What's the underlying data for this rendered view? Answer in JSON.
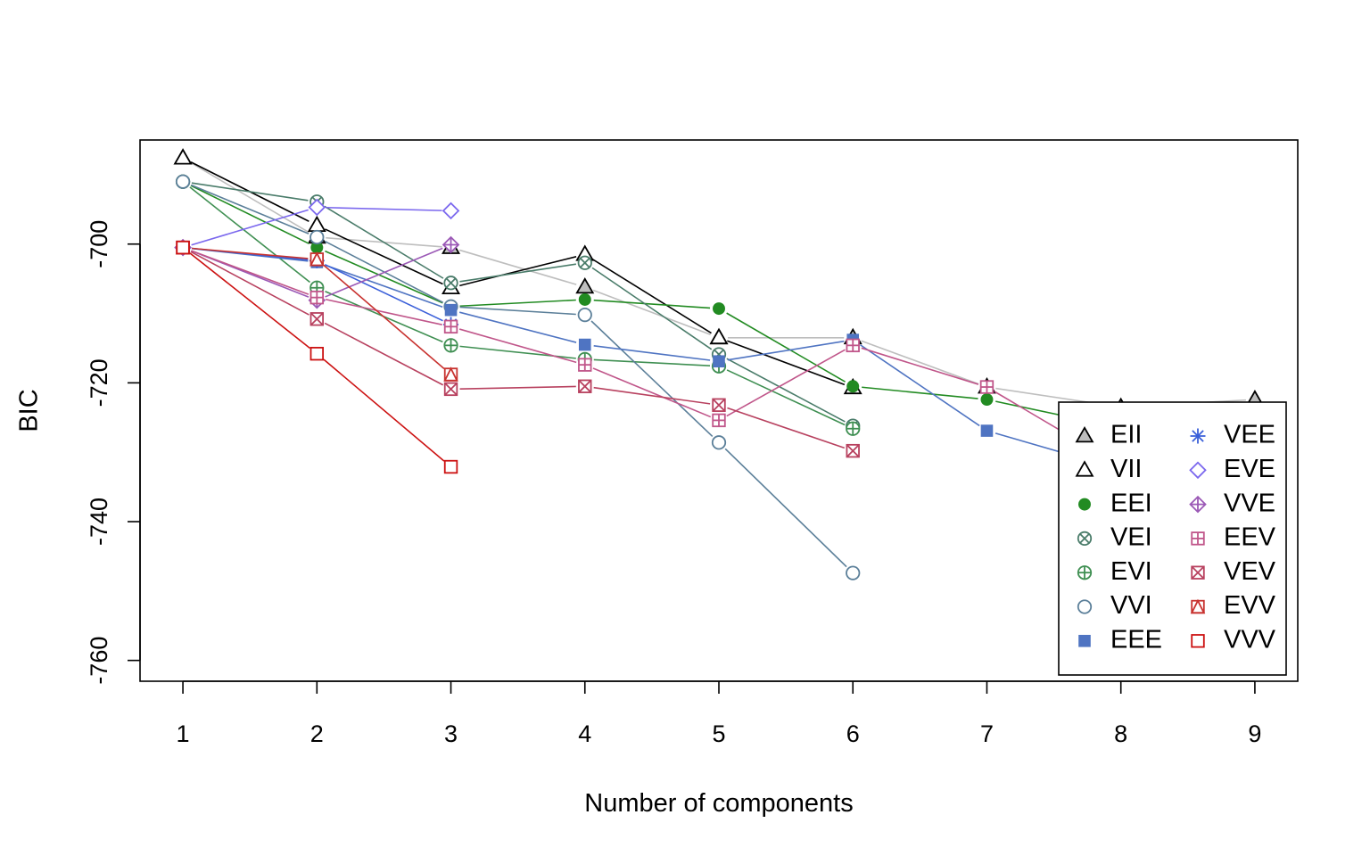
{
  "chart_data": {
    "type": "line",
    "title": "",
    "xlabel": "Number of components",
    "ylabel": "BIC",
    "x": [
      1,
      2,
      3,
      4,
      5,
      6,
      7,
      8,
      9
    ],
    "xlim": [
      0.68,
      9.32
    ],
    "ylim": [
      -763,
      -685
    ],
    "xticks": [
      "1",
      "2",
      "3",
      "4",
      "5",
      "6",
      "7",
      "8",
      "9"
    ],
    "yticks": [
      -760,
      -740,
      -720,
      -700
    ],
    "ytick_labels": [
      "-760",
      "-740",
      "-720",
      "-700"
    ],
    "grid": false,
    "legend_position": "bottom-right",
    "legend_columns": 2,
    "series": [
      {
        "name": "EII",
        "color": "#bebebe",
        "marker": "triangle-filled",
        "values": [
          -687.6,
          -699.0,
          -700.5,
          -706.2,
          -713.5,
          -713.5,
          -720.6,
          -723.5,
          -722.4
        ]
      },
      {
        "name": "VII",
        "color": "#000000",
        "marker": "triangle-open",
        "values": [
          -687.6,
          -697.3,
          -706.3,
          -701.5,
          -713.5,
          -720.7,
          null,
          null,
          null
        ]
      },
      {
        "name": "EEI",
        "color": "#228b22",
        "marker": "circle-filled",
        "values": [
          -691.0,
          -700.5,
          -709.0,
          -708.0,
          -709.3,
          -720.5,
          -722.4,
          -726.5,
          null
        ]
      },
      {
        "name": "VEI",
        "color": "#4a7c6a",
        "marker": "circle-x",
        "values": [
          -691.0,
          -693.9,
          -705.6,
          -702.7,
          -715.9,
          -726.2,
          null,
          null,
          null
        ]
      },
      {
        "name": "EVI",
        "color": "#3f8f52",
        "marker": "circle-plus",
        "values": [
          -691.0,
          -706.3,
          -714.6,
          -716.6,
          -717.6,
          -726.6,
          null,
          null,
          null
        ]
      },
      {
        "name": "VVI",
        "color": "#5b7f99",
        "marker": "circle-open",
        "values": [
          -691.0,
          -699.0,
          -709.0,
          -710.2,
          -728.6,
          -747.4,
          null,
          null,
          null
        ]
      },
      {
        "name": "EEE",
        "color": "#4f74c2",
        "marker": "square-filled",
        "values": [
          -700.5,
          -702.6,
          -709.5,
          -714.5,
          -716.9,
          -713.8,
          -726.9,
          -732.5,
          null
        ]
      },
      {
        "name": "VEE",
        "color": "#3a5fd9",
        "marker": "asterisk",
        "values": [
          -700.5,
          -702.4,
          -711.6,
          null,
          null,
          null,
          null,
          null,
          null
        ]
      },
      {
        "name": "EVE",
        "color": "#7b68ee",
        "marker": "diamond-open",
        "values": [
          -700.5,
          -694.7,
          -695.2,
          null,
          null,
          null,
          null,
          null,
          null
        ]
      },
      {
        "name": "VVE",
        "color": "#9b59b6",
        "marker": "diamond-plus",
        "values": [
          -700.5,
          -708.1,
          -700.1,
          null,
          null,
          null,
          null,
          null,
          null
        ]
      },
      {
        "name": "EEV",
        "color": "#c0568a",
        "marker": "square-plus",
        "values": [
          -700.5,
          -707.7,
          -711.9,
          -717.4,
          -725.4,
          -714.6,
          -720.6,
          -732.0,
          null
        ]
      },
      {
        "name": "VEV",
        "color": "#b8415f",
        "marker": "square-x",
        "values": [
          -700.5,
          -710.8,
          -720.9,
          -720.5,
          -723.2,
          -729.8,
          null,
          null,
          null
        ]
      },
      {
        "name": "EVV",
        "color": "#c8322f",
        "marker": "square-triangle",
        "values": [
          -700.5,
          -702.2,
          -718.8,
          null,
          null,
          null,
          null,
          null,
          null
        ]
      },
      {
        "name": "VVV",
        "color": "#cc1111",
        "marker": "square-open",
        "values": [
          -700.5,
          -715.8,
          -732.1,
          null,
          null,
          null,
          null,
          null,
          null
        ]
      }
    ]
  }
}
